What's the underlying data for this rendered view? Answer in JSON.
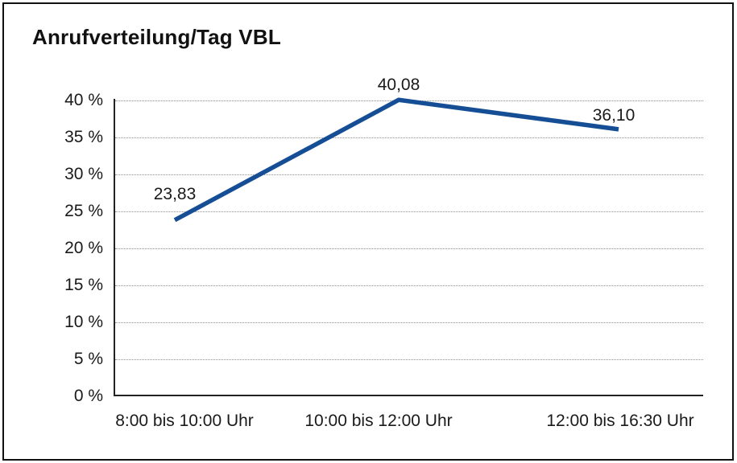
{
  "title": "Anrufverteilung/Tag VBL",
  "chart_data": {
    "type": "line",
    "title": "Anrufverteilung/Tag VBL",
    "categories": [
      "8:00 bis 10:00 Uhr",
      "10:00 bis 12:00 Uhr",
      "12:00 bis 16:30 Uhr"
    ],
    "values": [
      23.83,
      40.08,
      36.1
    ],
    "value_labels": [
      "23,83",
      "40,08",
      "36,10"
    ],
    "series_name": "Anrufverteilung",
    "xlabel": "",
    "ylabel": "",
    "ylim": [
      0,
      40
    ],
    "ytick_values": [
      0,
      5,
      10,
      15,
      20,
      25,
      30,
      35,
      40
    ],
    "ytick_labels": [
      "0 %",
      "5 %",
      "10 %",
      "15 %",
      "20 %",
      "25 %",
      "30 %",
      "35 %",
      "40 %"
    ],
    "grid": "horizontal dotted lines, no vertical grid",
    "legend_position": "none",
    "line_color": "#164e96",
    "axis_color": "#222222",
    "gridline_color": "#8f8f8f",
    "text_color": "#1a1a1a"
  }
}
